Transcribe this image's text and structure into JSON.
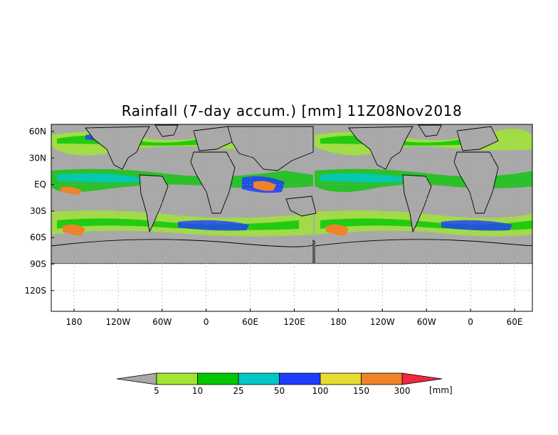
{
  "title": "Rainfall (7-day accum.) [mm] 11Z08Nov2018",
  "map": {
    "lat_labels": [
      "60N",
      "30N",
      "EQ",
      "30S",
      "60S",
      "90S",
      "120S"
    ],
    "lon_labels": [
      "180",
      "120W",
      "60W",
      "0",
      "60E",
      "120E",
      "180",
      "120W",
      "60W",
      "0",
      "60E"
    ],
    "land_color": "#a9a9a9",
    "ocean_dry_color": "#a9a9a9",
    "below_domain_color": "#ffffff"
  },
  "colorbar": {
    "unit": "[mm]",
    "under_color": "#a9a9a9",
    "over_color": "#f0283c",
    "bins": [
      {
        "color": "#a0e632",
        "label": "5"
      },
      {
        "color": "#00c800",
        "label": "10"
      },
      {
        "color": "#00c8c8",
        "label": "25"
      },
      {
        "color": "#1e3cff",
        "label": "50"
      },
      {
        "color": "#e6dc32",
        "label": "100"
      },
      {
        "color": "#f08228",
        "label": "150"
      },
      {
        "color": "#f0283c",
        "label": "300"
      }
    ]
  }
}
